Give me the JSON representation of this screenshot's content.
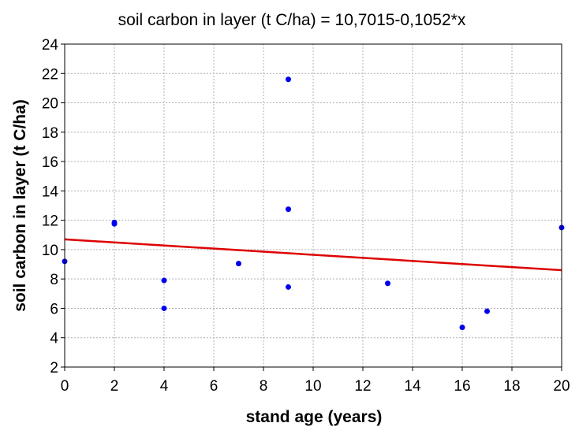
{
  "chart_data": {
    "type": "scatter",
    "title": "soil carbon in layer (t C/ha) = 10,7015-0,1052*x",
    "xlabel": "stand age (years)",
    "ylabel": "soil carbon in layer (t C/ha)",
    "xlim": [
      0,
      20
    ],
    "ylim": [
      2,
      24
    ],
    "xticks": [
      "0",
      "2",
      "4",
      "6",
      "8",
      "10",
      "12",
      "14",
      "16",
      "18",
      "20"
    ],
    "yticks": [
      "2",
      "4",
      "6",
      "8",
      "10",
      "12",
      "14",
      "16",
      "18",
      "20",
      "22",
      "24"
    ],
    "grid": true,
    "series": [
      {
        "points": [
          {
            "x": 0,
            "y": 9.2
          },
          {
            "x": 2,
            "y": 11.85
          },
          {
            "x": 2,
            "y": 11.75
          },
          {
            "x": 4,
            "y": 7.9
          },
          {
            "x": 4,
            "y": 6.0
          },
          {
            "x": 7,
            "y": 9.05
          },
          {
            "x": 9,
            "y": 21.6
          },
          {
            "x": 9,
            "y": 12.75
          },
          {
            "x": 9,
            "y": 7.45
          },
          {
            "x": 13,
            "y": 7.7
          },
          {
            "x": 16,
            "y": 4.7
          },
          {
            "x": 17,
            "y": 5.8
          },
          {
            "x": 20,
            "y": 11.5
          }
        ]
      }
    ],
    "regression": {
      "intercept": 10.7015,
      "slope": -0.1052
    },
    "colors": {
      "points": "#0000ee",
      "fit_line": "#dd0000",
      "grid": "#b0b0b0"
    }
  }
}
